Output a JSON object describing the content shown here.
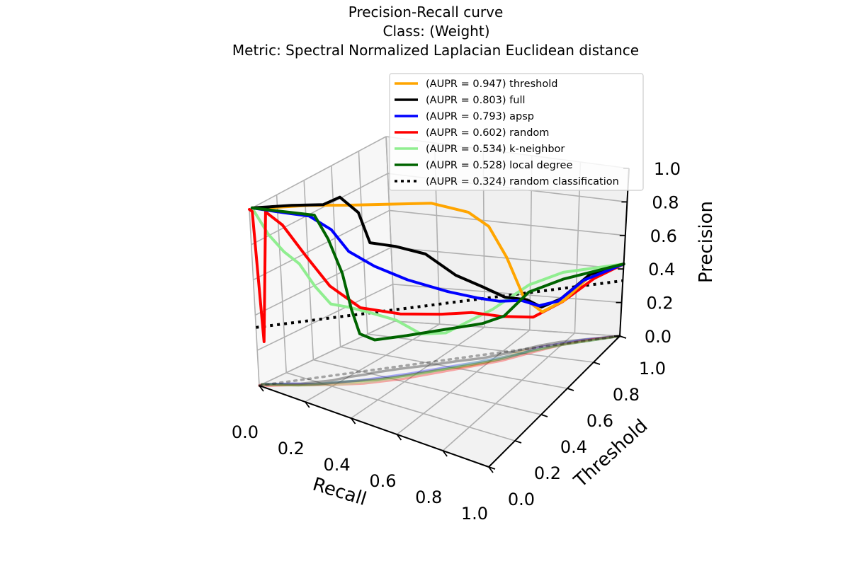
{
  "chart_data": {
    "type": "line",
    "projection": "3d",
    "title": [
      "Precision-Recall curve",
      "Class: (Weight)",
      "Metric: Spectral Normalized Laplacian Euclidean distance"
    ],
    "xlabel": "Recall",
    "ylabel": "Threshold",
    "zlabel": "Precision",
    "xlim": [
      0,
      1
    ],
    "ylim": [
      0,
      1
    ],
    "zlim": [
      0,
      1
    ],
    "xticks": [
      "0.0",
      "0.2",
      "0.4",
      "0.6",
      "0.8",
      "1.0"
    ],
    "yticks": [
      "0.0",
      "0.2",
      "0.4",
      "0.6",
      "0.8",
      "1.0"
    ],
    "zticks": [
      "0.0",
      "0.2",
      "0.4",
      "0.6",
      "0.8",
      "1.0"
    ],
    "grid": true,
    "legend_position": "top-right",
    "series": [
      {
        "name": "(AUPR = 0.947) threshold",
        "color": "#FFA500",
        "style": "solid",
        "points": [
          [
            0.0,
            0.02,
            1.0
          ],
          [
            0.06,
            0.08,
            1.0
          ],
          [
            0.15,
            0.18,
            1.0
          ],
          [
            0.25,
            0.3,
            0.98
          ],
          [
            0.35,
            0.42,
            0.96
          ],
          [
            0.45,
            0.55,
            0.93
          ],
          [
            0.55,
            0.64,
            0.86
          ],
          [
            0.6,
            0.7,
            0.76
          ],
          [
            0.64,
            0.76,
            0.56
          ],
          [
            0.68,
            0.82,
            0.3
          ],
          [
            0.73,
            0.87,
            0.2
          ],
          [
            0.8,
            0.91,
            0.25
          ],
          [
            0.9,
            0.96,
            0.4
          ],
          [
            1.0,
            1.0,
            0.43
          ]
        ]
      },
      {
        "name": "(AUPR = 0.803) full",
        "color": "#000000",
        "style": "solid",
        "points": [
          [
            0.0,
            0.02,
            1.0
          ],
          [
            0.1,
            0.14,
            1.0
          ],
          [
            0.17,
            0.25,
            0.98
          ],
          [
            0.2,
            0.32,
            1.0
          ],
          [
            0.24,
            0.38,
            0.9
          ],
          [
            0.26,
            0.42,
            0.72
          ],
          [
            0.32,
            0.5,
            0.68
          ],
          [
            0.4,
            0.58,
            0.62
          ],
          [
            0.48,
            0.66,
            0.48
          ],
          [
            0.56,
            0.72,
            0.4
          ],
          [
            0.62,
            0.78,
            0.32
          ],
          [
            0.68,
            0.84,
            0.28
          ],
          [
            0.72,
            0.88,
            0.22
          ],
          [
            0.78,
            0.92,
            0.25
          ],
          [
            0.88,
            0.96,
            0.38
          ],
          [
            1.0,
            1.0,
            0.43
          ]
        ]
      },
      {
        "name": "(AUPR = 0.793) apsp",
        "color": "#0000FF",
        "style": "solid",
        "points": [
          [
            0.0,
            0.02,
            1.0
          ],
          [
            0.08,
            0.12,
            0.96
          ],
          [
            0.15,
            0.18,
            0.94
          ],
          [
            0.2,
            0.25,
            0.85
          ],
          [
            0.24,
            0.3,
            0.72
          ],
          [
            0.3,
            0.38,
            0.62
          ],
          [
            0.38,
            0.48,
            0.52
          ],
          [
            0.48,
            0.6,
            0.42
          ],
          [
            0.56,
            0.68,
            0.36
          ],
          [
            0.62,
            0.74,
            0.32
          ],
          [
            0.68,
            0.8,
            0.3
          ],
          [
            0.72,
            0.86,
            0.24
          ],
          [
            0.78,
            0.9,
            0.25
          ],
          [
            0.86,
            0.95,
            0.35
          ],
          [
            1.0,
            1.0,
            0.43
          ]
        ]
      },
      {
        "name": "(AUPR = 0.602) random",
        "color": "#FF0000",
        "style": "solid",
        "points": [
          [
            0.0,
            0.0,
            1.0
          ],
          [
            0.0,
            0.02,
            0.98
          ],
          [
            0.02,
            0.02,
            0.25
          ],
          [
            0.04,
            0.05,
            0.98
          ],
          [
            0.08,
            0.1,
            0.9
          ],
          [
            0.14,
            0.16,
            0.72
          ],
          [
            0.2,
            0.22,
            0.55
          ],
          [
            0.28,
            0.3,
            0.42
          ],
          [
            0.38,
            0.42,
            0.36
          ],
          [
            0.48,
            0.55,
            0.32
          ],
          [
            0.56,
            0.64,
            0.3
          ],
          [
            0.64,
            0.72,
            0.25
          ],
          [
            0.72,
            0.82,
            0.2
          ],
          [
            0.8,
            0.9,
            0.25
          ],
          [
            0.9,
            0.96,
            0.36
          ],
          [
            1.0,
            1.0,
            0.43
          ]
        ]
      },
      {
        "name": "(AUPR = 0.534) k-neighbor",
        "color": "#90EE90",
        "style": "solid",
        "points": [
          [
            0.0,
            0.02,
            1.0
          ],
          [
            0.04,
            0.06,
            0.85
          ],
          [
            0.08,
            0.1,
            0.75
          ],
          [
            0.12,
            0.14,
            0.68
          ],
          [
            0.16,
            0.18,
            0.55
          ],
          [
            0.2,
            0.22,
            0.45
          ],
          [
            0.25,
            0.28,
            0.42
          ],
          [
            0.3,
            0.34,
            0.38
          ],
          [
            0.36,
            0.42,
            0.32
          ],
          [
            0.42,
            0.5,
            0.22
          ],
          [
            0.48,
            0.58,
            0.2
          ],
          [
            0.54,
            0.66,
            0.24
          ],
          [
            0.6,
            0.72,
            0.28
          ],
          [
            0.7,
            0.82,
            0.38
          ],
          [
            0.8,
            0.9,
            0.42
          ],
          [
            1.0,
            1.0,
            0.43
          ]
        ]
      },
      {
        "name": "(AUPR = 0.528) local degree",
        "color": "#006400",
        "style": "solid",
        "points": [
          [
            0.0,
            0.02,
            1.0
          ],
          [
            0.1,
            0.12,
            0.97
          ],
          [
            0.16,
            0.2,
            0.94
          ],
          [
            0.19,
            0.24,
            0.8
          ],
          [
            0.22,
            0.28,
            0.6
          ],
          [
            0.24,
            0.3,
            0.4
          ],
          [
            0.26,
            0.32,
            0.26
          ],
          [
            0.3,
            0.36,
            0.22
          ],
          [
            0.38,
            0.46,
            0.22
          ],
          [
            0.48,
            0.58,
            0.22
          ],
          [
            0.58,
            0.68,
            0.22
          ],
          [
            0.64,
            0.74,
            0.24
          ],
          [
            0.7,
            0.82,
            0.34
          ],
          [
            0.8,
            0.9,
            0.38
          ],
          [
            1.0,
            1.0,
            0.43
          ]
        ]
      },
      {
        "name": "(AUPR = 0.324) random classification",
        "color": "#000000",
        "style": "dotted",
        "points": [
          [
            0.0,
            0.0,
            0.33
          ],
          [
            1.0,
            1.0,
            0.33
          ]
        ]
      }
    ]
  }
}
